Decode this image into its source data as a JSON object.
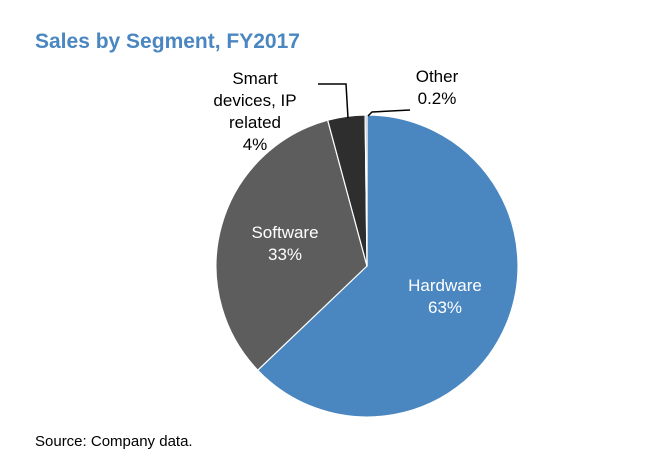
{
  "chart_data": {
    "type": "pie",
    "title": "Sales by Segment, FY2017",
    "source": "Source: Company data.",
    "slices": [
      {
        "name": "Hardware",
        "value": 63,
        "label_lines": [
          "Hardware",
          "63%"
        ],
        "color": "#4a86c0",
        "text_color": "#ffffff"
      },
      {
        "name": "Software",
        "value": 33,
        "label_lines": [
          "Software",
          "33%"
        ],
        "color": "#5d5d5d",
        "text_color": "#ffffff"
      },
      {
        "name": "Smart devices, IP related",
        "value": 4,
        "label_lines": [
          "Smart",
          "devices, IP",
          "related",
          "4%"
        ],
        "color": "#2e2e2e",
        "text_color": "#000000"
      },
      {
        "name": "Other",
        "value": 0.2,
        "label_lines": [
          "Other",
          "0.2%"
        ],
        "color": "#9aa3ad",
        "text_color": "#000000"
      }
    ],
    "start": "top",
    "direction": "clockwise"
  }
}
